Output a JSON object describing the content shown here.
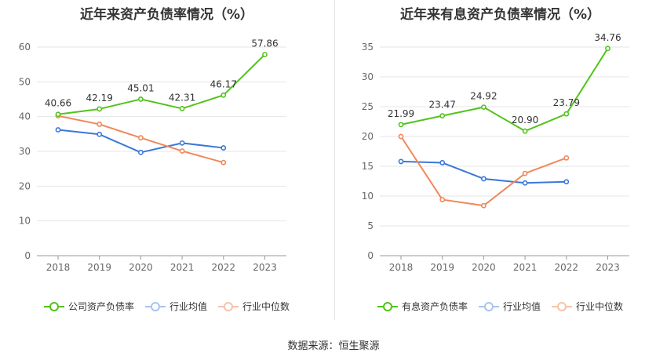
{
  "colors": {
    "main": "#52c41a",
    "avg": "#3a78d8",
    "median": "#f0885a",
    "grid": "#e6e6e6",
    "axis": "#999999",
    "tick_text": "#666666",
    "label_text": "#333333"
  },
  "charts": [
    {
      "title": "近年来资产负债率情况（%）",
      "legend": [
        "公司资产负债率",
        "行业均值",
        "行业中位数"
      ]
    },
    {
      "title": "近年来有息资产负债率情况（%）",
      "legend": [
        "有息资产负债率",
        "行业均值",
        "行业中位数"
      ]
    }
  ],
  "chart_data": [
    {
      "type": "line",
      "title": "近年来资产负债率情况（%）",
      "categories": [
        "2018",
        "2019",
        "2020",
        "2021",
        "2022",
        "2023"
      ],
      "ylim": [
        0,
        60
      ],
      "yticks": [
        0,
        10,
        20,
        30,
        40,
        50,
        60
      ],
      "grid": true,
      "legend_position": "bottom",
      "series": [
        {
          "name": "公司资产负债率",
          "key": "main",
          "values": [
            40.66,
            42.19,
            45.01,
            42.31,
            46.17,
            57.86
          ],
          "labels": [
            "40.66",
            "42.19",
            "45.01",
            "42.31",
            "46.17",
            "57.86"
          ]
        },
        {
          "name": "行业均值",
          "key": "avg",
          "values": [
            36.2,
            34.9,
            29.7,
            32.4,
            31.0,
            null
          ]
        },
        {
          "name": "行业中位数",
          "key": "median",
          "values": [
            40.2,
            37.8,
            33.9,
            30.1,
            26.8,
            null
          ]
        }
      ]
    },
    {
      "type": "line",
      "title": "近年来有息资产负债率情况（%）",
      "categories": [
        "2018",
        "2019",
        "2020",
        "2021",
        "2022",
        "2023"
      ],
      "ylim": [
        0,
        35
      ],
      "yticks": [
        0,
        5,
        10,
        15,
        20,
        25,
        30,
        35
      ],
      "grid": true,
      "legend_position": "bottom",
      "series": [
        {
          "name": "有息资产负债率",
          "key": "main",
          "values": [
            21.99,
            23.47,
            24.92,
            20.9,
            23.79,
            34.76
          ],
          "labels": [
            "21.99",
            "23.47",
            "24.92",
            "20.90",
            "23.79",
            "34.76"
          ]
        },
        {
          "name": "行业均值",
          "key": "avg",
          "values": [
            15.8,
            15.6,
            12.9,
            12.2,
            12.4,
            null
          ]
        },
        {
          "name": "行业中位数",
          "key": "median",
          "values": [
            20.0,
            9.4,
            8.4,
            13.8,
            16.4,
            null
          ]
        }
      ]
    }
  ],
  "footer": {
    "source": "数据来源：恒生聚源"
  }
}
